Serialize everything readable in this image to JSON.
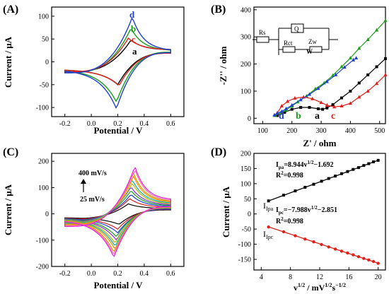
{
  "chart_data": [
    {
      "panel": "(A)",
      "type": "line",
      "xlabel": "Potential / V",
      "ylabel": "Current / μA",
      "xlim": [
        -0.3,
        0.7
      ],
      "ylim": [
        -120,
        120
      ],
      "xticks": [
        "-0.2",
        "0.0",
        "0.2",
        "0.4",
        "0.6"
      ],
      "yticks": [
        "-100",
        "-50",
        "0",
        "50",
        "100"
      ],
      "series": [
        {
          "name": "a",
          "color": "#000000",
          "peak_anodic": [
            0.3,
            48
          ],
          "peak_cathodic": [
            0.2,
            -50
          ],
          "end_upper": 26,
          "end_lower": 19,
          "start_upper": -17,
          "start_lower": -22
        },
        {
          "name": "b",
          "color": "#1a9e1a",
          "peak_anodic": [
            0.3,
            74
          ],
          "peak_cathodic": [
            0.19,
            -88
          ],
          "end_upper": 24,
          "end_lower": 21,
          "start_upper": -17,
          "start_lower": -24
        },
        {
          "name": "c",
          "color": "#e0201b",
          "peak_anodic": [
            0.28,
            52
          ],
          "peak_cathodic": [
            0.21,
            -52
          ],
          "end_upper": 26,
          "end_lower": 19,
          "start_upper": -17,
          "start_lower": -22
        },
        {
          "name": "d",
          "color": "#1f3fd1",
          "peak_anodic": [
            0.31,
            98
          ],
          "peak_cathodic": [
            0.19,
            -103
          ],
          "end_upper": 24,
          "end_lower": 20,
          "start_upper": -17,
          "start_lower": -24
        }
      ],
      "annotations": [
        "d",
        "b",
        "c",
        "a"
      ]
    },
    {
      "panel": "(B)",
      "type": "line",
      "xlabel": "Z' / ohm",
      "ylabel": "-Z'' / ohm",
      "xlim": [
        70,
        520
      ],
      "ylim": [
        -20,
        410
      ],
      "xticks": [
        "100",
        "200",
        "300",
        "400",
        "500"
      ],
      "yticks": [
        "0",
        "100",
        "200",
        "300",
        "400"
      ],
      "circuit_labels": [
        "Rs",
        "Q",
        "Rct",
        "Zw",
        "W"
      ],
      "series": [
        {
          "name": "a",
          "color": "#000000",
          "points": [
            [
              150,
              10
            ],
            [
              175,
              22
            ],
            [
              200,
              33
            ],
            [
              230,
              40
            ],
            [
              260,
              40
            ],
            [
              290,
              35
            ],
            [
              305,
              33
            ],
            [
              320,
              38
            ],
            [
              340,
              50
            ],
            [
              370,
              75
            ],
            [
              400,
              100
            ],
            [
              430,
              130
            ],
            [
              460,
              160
            ],
            [
              490,
              190
            ],
            [
              520,
              220
            ]
          ]
        },
        {
          "name": "b",
          "color": "#1a9e1a",
          "points": [
            [
              142,
              10
            ],
            [
              160,
              18
            ],
            [
              180,
              30
            ],
            [
              200,
              45
            ],
            [
              220,
              60
            ],
            [
              250,
              82
            ],
            [
              280,
              108
            ],
            [
              310,
              130
            ],
            [
              340,
              158
            ],
            [
              370,
              190
            ],
            [
              400,
              222
            ],
            [
              430,
              258
            ],
            [
              460,
              290
            ],
            [
              490,
              325
            ],
            [
              520,
              360
            ]
          ]
        },
        {
          "name": "c",
          "color": "#e0201b",
          "points": [
            [
              150,
              20
            ],
            [
              165,
              45
            ],
            [
              185,
              62
            ],
            [
              210,
              74
            ],
            [
              240,
              78
            ],
            [
              270,
              72
            ],
            [
              300,
              58
            ],
            [
              320,
              48
            ],
            [
              345,
              42
            ],
            [
              370,
              45
            ],
            [
              400,
              55
            ],
            [
              430,
              78
            ],
            [
              460,
              100
            ],
            [
              490,
              128
            ],
            [
              520,
              160
            ]
          ]
        },
        {
          "name": "d",
          "color": "#1f3fd1",
          "points": [
            [
              140,
              12
            ],
            [
              150,
              18
            ],
            [
              165,
              25
            ],
            [
              180,
              35
            ],
            [
              200,
              48
            ],
            [
              230,
              68
            ],
            [
              260,
              88
            ],
            [
              290,
              110
            ],
            [
              320,
              135
            ],
            [
              350,
              160
            ],
            [
              380,
              188
            ],
            [
              410,
              215
            ],
            [
              420,
              222
            ]
          ]
        }
      ],
      "annotations": [
        "d",
        "b",
        "a",
        "c"
      ]
    },
    {
      "panel": "(C)",
      "type": "line",
      "xlabel": "Potential / V",
      "ylabel": "Current / μA",
      "xlim": [
        -0.3,
        0.7
      ],
      "ylim": [
        -200,
        230
      ],
      "xticks": [
        "-0.2",
        "0.0",
        "0.2",
        "0.4",
        "0.6"
      ],
      "yticks": [
        "-200",
        "-100",
        "0",
        "100",
        "200"
      ],
      "annotations": [
        "400 mV/s",
        "25 mV/s"
      ],
      "series": [
        {
          "color": "#000000",
          "peak_anodic": [
            0.28,
            38
          ],
          "peak_cathodic": [
            0.21,
            -40
          ],
          "end_upper": 20,
          "end_lower": 15,
          "start_upper": -14,
          "start_lower": -18
        },
        {
          "color": "#e0201b",
          "peak_anodic": [
            0.29,
            58
          ],
          "peak_cathodic": [
            0.2,
            -58
          ],
          "end_upper": 24,
          "end_lower": 17,
          "start_upper": -15,
          "start_lower": -21
        },
        {
          "color": "#1f3fd1",
          "peak_anodic": [
            0.3,
            74
          ],
          "peak_cathodic": [
            0.2,
            -72
          ],
          "end_upper": 27,
          "end_lower": 18,
          "start_upper": -16,
          "start_lower": -24
        },
        {
          "color": "#1a9e1a",
          "peak_anodic": [
            0.3,
            89
          ],
          "peak_cathodic": [
            0.19,
            -87
          ],
          "end_upper": 30,
          "end_lower": 20,
          "start_upper": -17,
          "start_lower": -27
        },
        {
          "color": "#8a2be2",
          "peak_anodic": [
            0.3,
            103
          ],
          "peak_cathodic": [
            0.19,
            -100
          ],
          "end_upper": 33,
          "end_lower": 21,
          "start_upper": -18,
          "start_lower": -30
        },
        {
          "color": "#b5b500",
          "peak_anodic": [
            0.31,
            117
          ],
          "peak_cathodic": [
            0.18,
            -112
          ],
          "end_upper": 36,
          "end_lower": 22,
          "start_upper": -19,
          "start_lower": -33
        },
        {
          "color": "#00b3b3",
          "peak_anodic": [
            0.31,
            130
          ],
          "peak_cathodic": [
            0.18,
            -124
          ],
          "end_upper": 39,
          "end_lower": 23,
          "start_upper": -20,
          "start_lower": -36
        },
        {
          "color": "#ff8c00",
          "peak_anodic": [
            0.32,
            143
          ],
          "peak_cathodic": [
            0.18,
            -136
          ],
          "end_upper": 42,
          "end_lower": 24,
          "start_upper": -21,
          "start_lower": -39
        },
        {
          "color": "#c8a000",
          "peak_anodic": [
            0.32,
            155
          ],
          "peak_cathodic": [
            0.17,
            -146
          ],
          "end_upper": 45,
          "end_lower": 25,
          "start_upper": -22,
          "start_lower": -42
        },
        {
          "color": "#ff6fa8",
          "peak_anodic": [
            0.33,
            168
          ],
          "peak_cathodic": [
            0.17,
            -156
          ],
          "end_upper": 48,
          "end_lower": 26,
          "start_upper": -23,
          "start_lower": -45
        },
        {
          "color": "#e020e0",
          "peak_anodic": [
            0.33,
            180
          ],
          "peak_cathodic": [
            0.17,
            -166
          ],
          "end_upper": 52,
          "end_lower": 27,
          "start_upper": -24,
          "start_lower": -48
        }
      ]
    },
    {
      "panel": "(D)",
      "type": "scatter",
      "xlabel": "v^1/2 / mV^1/2 s^-1/2",
      "ylabel": "Current / μA",
      "xlim": [
        3,
        21
      ],
      "ylim": [
        -185,
        200
      ],
      "xticks": [
        "4",
        "8",
        "12",
        "16",
        "20"
      ],
      "yticks": [
        "-150",
        "-100",
        "-50",
        "0",
        "50",
        "100",
        "150",
        "200"
      ],
      "series": [
        {
          "name": "Ipa",
          "color": "#000000",
          "x": [
            5,
            7.07,
            8.66,
            10,
            11.18,
            12.25,
            13.23,
            14.14,
            15,
            15.81,
            16.58,
            17.32,
            18.03,
            18.71,
            19.36,
            20
          ],
          "y": [
            43,
            62,
            76,
            88,
            98,
            108,
            117,
            125,
            133,
            140,
            147,
            153,
            160,
            166,
            172,
            177
          ],
          "fit": {
            "slope": 8.944,
            "intercept": -1.692
          }
        },
        {
          "name": "Ipc",
          "color": "#e0201b",
          "x": [
            5,
            7.07,
            8.66,
            10,
            11.18,
            12.25,
            13.23,
            14.14,
            15,
            15.81,
            16.58,
            17.32,
            18.03,
            18.71,
            19.36,
            20
          ],
          "y": [
            -43,
            -59,
            -72,
            -83,
            -92,
            -101,
            -109,
            -116,
            -123,
            -129,
            -135,
            -141,
            -147,
            -152,
            -157,
            -163
          ],
          "fit": {
            "slope": -7.988,
            "intercept": -2.851
          }
        }
      ],
      "annotations": {
        "ipa_eq": "8.944v",
        "ipa_eq_tail": "−1.692",
        "ipa_r2": "=0.998",
        "ipc_eq": "=−7.988v",
        "ipc_eq_tail": "−2.851",
        "ipc_r2": "=0.998"
      }
    }
  ]
}
